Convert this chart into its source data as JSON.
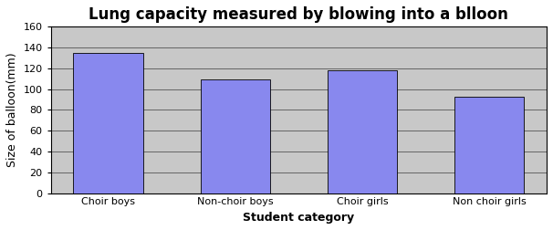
{
  "title": "Lung capacity measured by blowing into a blloon",
  "categories": [
    "Choir boys",
    "Non-choir boys",
    "Choir girls",
    "Non choir girls"
  ],
  "values": [
    135,
    109,
    118,
    93
  ],
  "bar_color": "#8888EE",
  "bar_edgecolor": "#000000",
  "xlabel": "Student category",
  "ylabel": "Size of balloon(mm)",
  "ylim": [
    0,
    160
  ],
  "yticks": [
    0,
    20,
    40,
    60,
    80,
    100,
    120,
    140,
    160
  ],
  "fig_bg_color": "#FFFFFF",
  "plot_bg_color": "#C8C8C8",
  "title_fontsize": 12,
  "axis_label_fontsize": 9,
  "tick_fontsize": 8,
  "bar_width": 0.55
}
